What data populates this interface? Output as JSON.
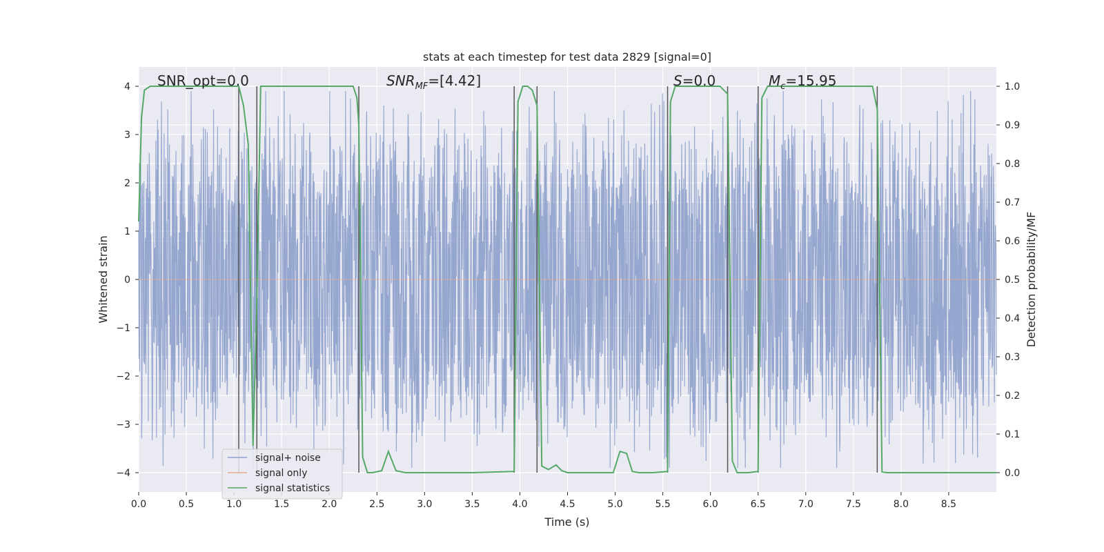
{
  "chart_data": {
    "type": "line",
    "title": "stats at each timestep for test data 2829 [signal=0]",
    "xlabel": "Time (s)",
    "ylabel_left": "Whitened strain",
    "ylabel_right": "Detection probability/MF",
    "xlim": [
      0.0,
      9.0
    ],
    "ylim_left": [
      -4.4,
      4.4
    ],
    "ylim_right": [
      -0.05,
      1.05
    ],
    "x_ticks": [
      "0.0",
      "0.5",
      "1.0",
      "1.5",
      "2.0",
      "2.5",
      "3.0",
      "3.5",
      "4.0",
      "4.5",
      "5.0",
      "5.5",
      "6.0",
      "6.5",
      "7.0",
      "7.5",
      "8.0",
      "8.5"
    ],
    "y_left_ticks": [
      "4",
      "3",
      "2",
      "1",
      "0",
      "−1",
      "−2",
      "−3",
      "−4"
    ],
    "y_right_ticks": [
      "1.0",
      "0.9",
      "0.8",
      "0.7",
      "0.6",
      "0.5",
      "0.4",
      "0.3",
      "0.2",
      "0.1",
      "0.0"
    ],
    "grid": true,
    "legend_position": "lower-left",
    "legend": [
      {
        "label": "signal+ noise",
        "color": "#8da0cb"
      },
      {
        "label": "signal only",
        "color": "#e5a98f"
      },
      {
        "label": "signal statistics",
        "color": "#55a868"
      }
    ],
    "annotations": [
      {
        "text": "SNR_opt=0.0",
        "x": 0.2
      },
      {
        "text": "SNR_MF=[4.42]",
        "x": 2.6
      },
      {
        "text": "S=0.0",
        "x": 5.6
      },
      {
        "text": "M_c=15.95",
        "x": 6.6
      }
    ],
    "noise_series": {
      "name": "signal+ noise",
      "color": "#8da0cb",
      "typical_amplitude": 2.2,
      "max_amplitude": 3.9,
      "duration": 9.0
    },
    "signal_only_series": {
      "name": "signal only",
      "color": "#e5a98f",
      "x": [
        0.0,
        9.0
      ],
      "y": [
        0.0,
        0.0
      ]
    },
    "vertical_lines": [
      1.05,
      1.24,
      2.31,
      3.94,
      4.18,
      5.55,
      6.18,
      6.5,
      7.75
    ],
    "statistics_series": {
      "name": "signal statistics",
      "color": "#55a868",
      "x": [
        0.0,
        0.03,
        0.06,
        0.12,
        0.2,
        0.4,
        0.8,
        1.05,
        1.1,
        1.15,
        1.2,
        1.24,
        1.28,
        1.32,
        1.5,
        2.0,
        2.25,
        2.29,
        2.31,
        2.35,
        2.4,
        2.45,
        2.55,
        2.62,
        2.7,
        2.8,
        2.9,
        3.2,
        3.5,
        3.94,
        3.98,
        4.03,
        4.08,
        4.13,
        4.18,
        4.23,
        4.3,
        4.38,
        4.44,
        4.5,
        4.6,
        4.8,
        4.98,
        5.05,
        5.12,
        5.18,
        5.25,
        5.4,
        5.55,
        5.58,
        5.63,
        5.7,
        5.9,
        6.1,
        6.18,
        6.23,
        6.28,
        6.33,
        6.4,
        6.5,
        6.54,
        6.6,
        6.8,
        7.2,
        7.7,
        7.75,
        7.8,
        7.85,
        8.0,
        8.5,
        9.0
      ],
      "y": [
        0.65,
        0.92,
        0.99,
        1.0,
        1.0,
        1.0,
        1.0,
        1.0,
        0.95,
        0.85,
        0.07,
        0.45,
        1.0,
        1.0,
        1.0,
        1.0,
        1.0,
        0.97,
        0.9,
        0.04,
        0.0,
        0.0,
        0.005,
        0.055,
        0.005,
        0.0,
        0.0,
        0.0,
        0.0,
        0.003,
        0.96,
        1.0,
        1.0,
        0.99,
        0.95,
        0.017,
        0.008,
        0.02,
        0.005,
        0.0,
        0.0,
        0.0,
        0.0,
        0.055,
        0.05,
        0.003,
        0.0,
        0.0,
        0.003,
        0.96,
        1.0,
        1.0,
        1.0,
        1.0,
        0.98,
        0.03,
        0.0,
        0.0,
        0.0,
        0.003,
        0.97,
        1.0,
        1.0,
        1.0,
        1.0,
        0.94,
        0.002,
        0.0,
        0.0,
        0.0,
        0.0
      ]
    }
  }
}
